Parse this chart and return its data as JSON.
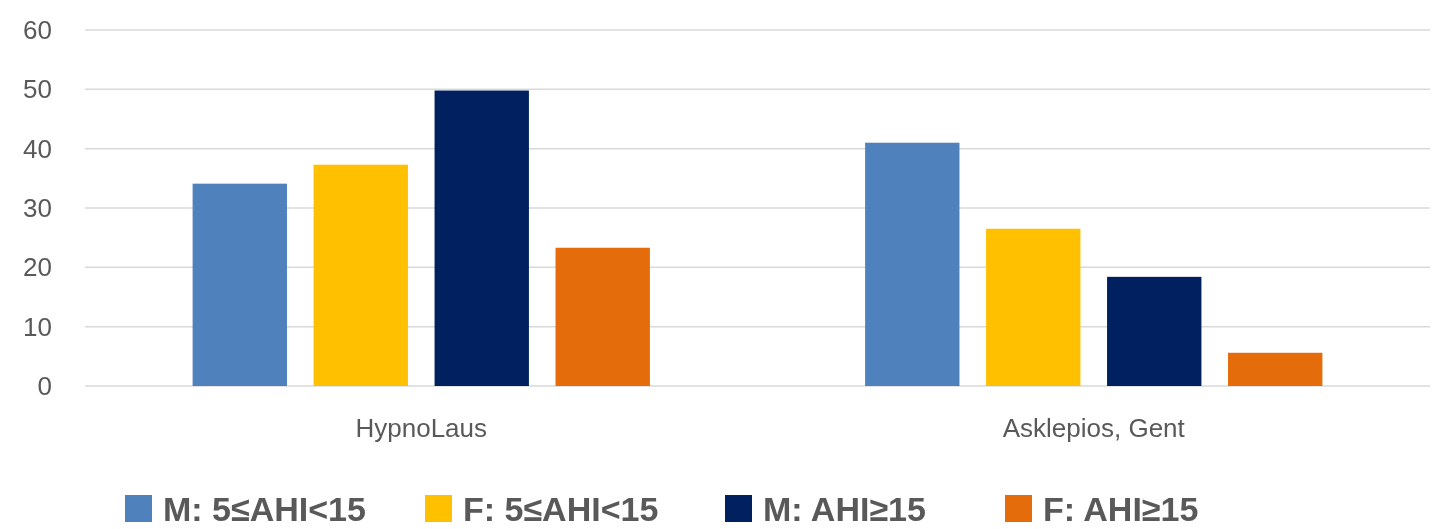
{
  "chart_data": {
    "type": "bar",
    "categories": [
      "HypnoLaus",
      "Asklepios, Gent"
    ],
    "series": [
      {
        "name": "M: 5≤AHI<15",
        "color": "#4f81bd",
        "values": [
          34.1,
          41.0
        ]
      },
      {
        "name": "F: 5≤AHI<15",
        "color": "#ffc000",
        "values": [
          37.3,
          26.5
        ]
      },
      {
        "name": "M: AHI≥15",
        "color": "#002060",
        "values": [
          49.8,
          18.4
        ]
      },
      {
        "name": "F: AHI≥15",
        "color": "#e46c0a",
        "values": [
          23.3,
          5.6
        ]
      }
    ],
    "ylim": [
      0,
      60
    ],
    "yticks": [
      0,
      10,
      20,
      30,
      40,
      50,
      60
    ],
    "grid": "y",
    "legend": "bottom"
  }
}
